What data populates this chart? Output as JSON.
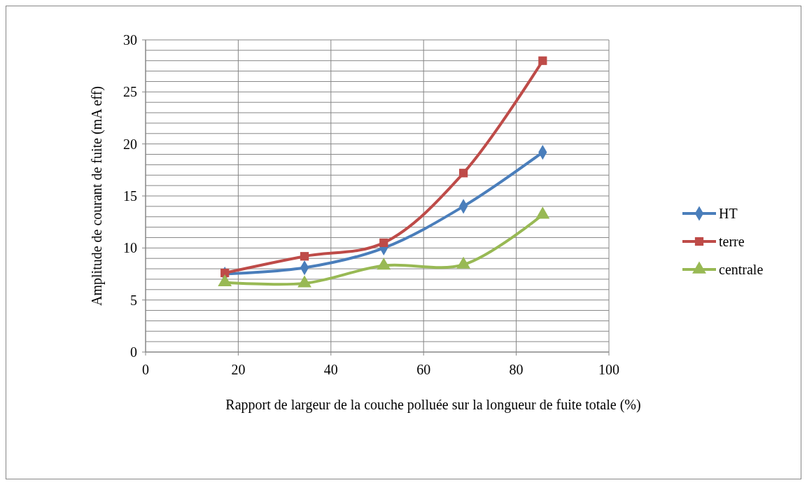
{
  "chart_data": {
    "type": "line",
    "xlabel": "Rapport de largeur de la couche polluée sur la longueur de fuite  totale (%)",
    "ylabel": "Amplitude de courant de fuite (mA eff)",
    "x": [
      17.1,
      34.3,
      51.4,
      68.6,
      85.7
    ],
    "series": [
      {
        "name": "HT",
        "color": "#4a7ebb",
        "marker": "diamond",
        "values": [
          7.5,
          8.1,
          10.0,
          14.0,
          19.2
        ]
      },
      {
        "name": "terre",
        "color": "#be4b48",
        "marker": "square",
        "values": [
          7.6,
          9.2,
          10.5,
          17.2,
          28.0
        ]
      },
      {
        "name": "centrale",
        "color": "#98b954",
        "marker": "triangle",
        "values": [
          6.7,
          6.6,
          8.3,
          8.4,
          13.2
        ]
      }
    ],
    "xlim": [
      0,
      100
    ],
    "xticks": [
      0,
      20,
      40,
      60,
      80,
      100
    ],
    "ylim": [
      0,
      30
    ],
    "yticks": [
      0,
      {
        "value": 1,
        "label": null
      },
      {
        "value": 2,
        "label": null
      },
      {
        "value": 3,
        "label": null
      },
      {
        "value": 4,
        "label": null
      },
      5,
      {
        "value": 6,
        "label": null
      },
      {
        "value": 7,
        "label": null
      },
      {
        "value": 8,
        "label": null
      },
      {
        "value": 9,
        "label": null
      },
      10,
      {
        "value": 11,
        "label": null
      },
      {
        "value": 12,
        "label": null
      },
      {
        "value": 13,
        "label": null
      },
      {
        "value": 14,
        "label": null
      },
      15,
      {
        "value": 16,
        "label": null
      },
      {
        "value": 17,
        "label": null
      },
      {
        "value": 18,
        "label": null
      },
      {
        "value": 19,
        "label": null
      },
      20,
      {
        "value": 21,
        "label": null
      },
      {
        "value": 22,
        "label": null
      },
      {
        "value": 23,
        "label": null
      },
      {
        "value": 24,
        "label": null
      },
      25,
      {
        "value": 26,
        "label": null
      },
      {
        "value": 27,
        "label": null
      },
      {
        "value": 28,
        "label": null
      },
      {
        "value": 29,
        "label": null
      },
      30
    ],
    "grid": true,
    "legend": "right"
  }
}
